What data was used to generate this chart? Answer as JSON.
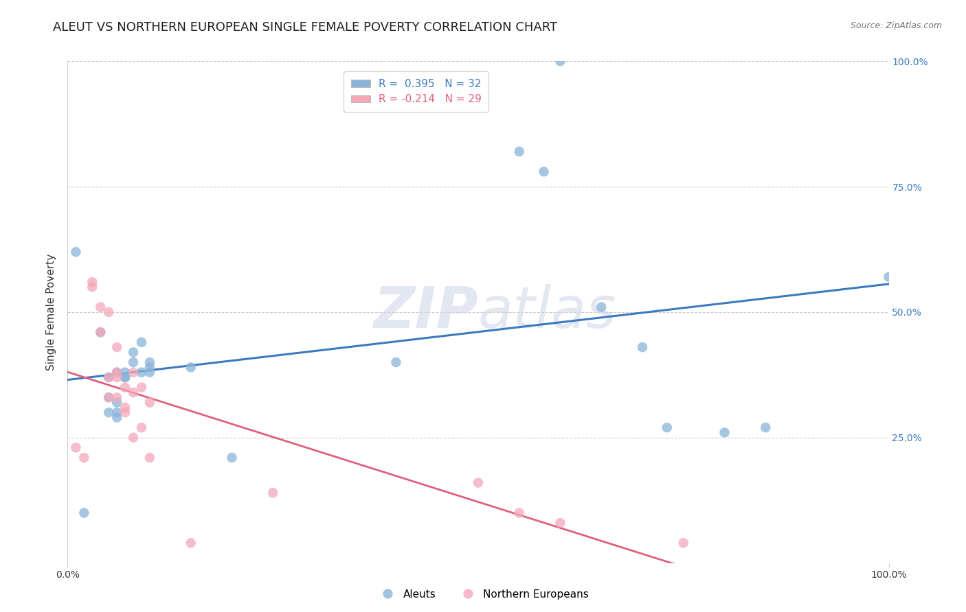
{
  "title": "ALEUT VS NORTHERN EUROPEAN SINGLE FEMALE POVERTY CORRELATION CHART",
  "source": "Source: ZipAtlas.com",
  "ylabel": "Single Female Poverty",
  "background_color": "#ffffff",
  "aleuts_color": "#8ab4d8",
  "northern_europeans_color": "#f4a7b9",
  "aleuts_line_color": "#3a7abf",
  "northern_europeans_line_color": "#e0607a",
  "aleuts_R": 0.395,
  "aleuts_N": 32,
  "northern_europeans_R": -0.214,
  "northern_europeans_N": 29,
  "aleuts_x": [
    1,
    2,
    4,
    5,
    5,
    5,
    6,
    6,
    6,
    6,
    7,
    7,
    7,
    8,
    8,
    9,
    9,
    10,
    10,
    10,
    15,
    20,
    40,
    55,
    58,
    60,
    65,
    70,
    73,
    80,
    85,
    100
  ],
  "aleuts_y": [
    62,
    10,
    46,
    30,
    33,
    37,
    30,
    32,
    29,
    38,
    37,
    38,
    37,
    42,
    40,
    44,
    38,
    38,
    39,
    40,
    39,
    21,
    40,
    82,
    78,
    100,
    51,
    43,
    27,
    26,
    27,
    57
  ],
  "northern_europeans_x": [
    1,
    2,
    3,
    3,
    4,
    4,
    5,
    5,
    5,
    6,
    6,
    6,
    6,
    7,
    7,
    7,
    8,
    8,
    8,
    9,
    9,
    10,
    10,
    15,
    25,
    50,
    55,
    60,
    75
  ],
  "northern_europeans_y": [
    23,
    21,
    56,
    55,
    51,
    46,
    37,
    33,
    50,
    38,
    37,
    33,
    43,
    30,
    31,
    35,
    25,
    34,
    38,
    27,
    35,
    21,
    32,
    4,
    14,
    16,
    10,
    8,
    4
  ],
  "xlim": [
    0,
    100
  ],
  "ylim": [
    0,
    100
  ],
  "xtick_positions": [
    0,
    100
  ],
  "xtick_labels": [
    "0.0%",
    "100.0%"
  ],
  "ytick_values": [
    25,
    50,
    75,
    100
  ],
  "ytick_labels": [
    "25.0%",
    "50.0%",
    "75.0%",
    "100.0%"
  ],
  "grid_color": "#cccccc",
  "marker_size": 110,
  "title_fontsize": 13,
  "axis_label_fontsize": 11,
  "tick_fontsize": 10,
  "legend_fontsize": 11,
  "watermark_color": "#d0d8e8",
  "watermark_alpha": 0.6
}
